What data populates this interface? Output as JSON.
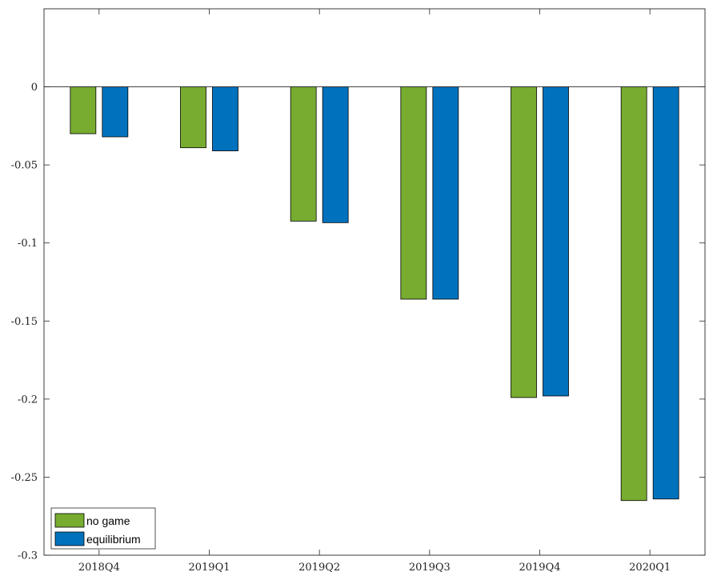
{
  "chart_data": {
    "type": "bar",
    "title": "",
    "xlabel": "",
    "ylabel": "",
    "categories": [
      "2018Q4",
      "2019Q1",
      "2019Q2",
      "2019Q3",
      "2019Q4",
      "2020Q1"
    ],
    "series": [
      {
        "name": "no game",
        "color": "#77AC30",
        "values": [
          -0.03,
          -0.039,
          -0.086,
          -0.136,
          -0.199,
          -0.265
        ]
      },
      {
        "name": "equilibrium",
        "color": "#0072BD",
        "values": [
          -0.032,
          -0.041,
          -0.087,
          -0.136,
          -0.198,
          -0.264
        ]
      }
    ],
    "ylim": [
      -0.3,
      0.05
    ],
    "yticks": [
      0,
      -0.05,
      -0.1,
      -0.15,
      -0.2,
      -0.25,
      -0.3
    ],
    "ytick_labels": [
      "0",
      "-0.05",
      "-0.1",
      "-0.15",
      "-0.2",
      "-0.25",
      "-0.3"
    ],
    "grid": false,
    "legend_position": "bottom-left"
  }
}
